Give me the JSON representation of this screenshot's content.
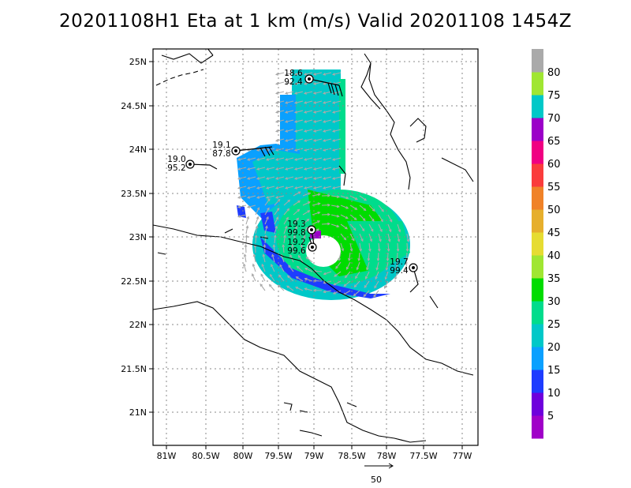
{
  "title": "20201108H1 Eta at 1 km (m/s) Valid 20201108 1454Z",
  "lat_labels": [
    "25N",
    "24.5N",
    "24N",
    "23.5N",
    "23N",
    "22.5N",
    "22N",
    "21.5N",
    "21N"
  ],
  "lon_labels": [
    "81W",
    "80.5W",
    "80W",
    "79.5W",
    "79W",
    "78.5W",
    "78W",
    "77.5W",
    "77W"
  ],
  "colorbar": {
    "labels": [
      "5",
      "10",
      "15",
      "20",
      "25",
      "30",
      "35",
      "40",
      "45",
      "50",
      "55",
      "60",
      "65",
      "70",
      "75",
      "80"
    ],
    "colors": [
      "#a000c8",
      "#6e00dc",
      "#1e3cff",
      "#0aa0ff",
      "#00c8c8",
      "#00dc8c",
      "#00dc00",
      "#a0e632",
      "#e6dc32",
      "#e6af2d",
      "#f08228",
      "#fa3c3c",
      "#f00082",
      "#9b00c8",
      "#00c8c8",
      "#a0e632",
      "#aaaaaa"
    ]
  },
  "vector_scale": {
    "label": "50"
  },
  "stations": [
    {
      "top": "18.6",
      "bottom": "92.4",
      "symbol": "station-circle"
    },
    {
      "top": "19.1",
      "bottom": "87.8",
      "symbol": "station-circle"
    },
    {
      "top": "19.0",
      "bottom": "95.2",
      "symbol": "station-circle"
    },
    {
      "top": "19.3",
      "bottom": "99.8",
      "symbol": "station-circle"
    },
    {
      "top": "19.2",
      "bottom": "99.6",
      "symbol": "station-circle"
    },
    {
      "top": "19.7",
      "bottom": "99.4",
      "symbol": "station-circle"
    }
  ],
  "colors": {
    "frame": "#000000",
    "grid": "#888888",
    "vector": "#aaaaaa",
    "coast": "#000000"
  }
}
